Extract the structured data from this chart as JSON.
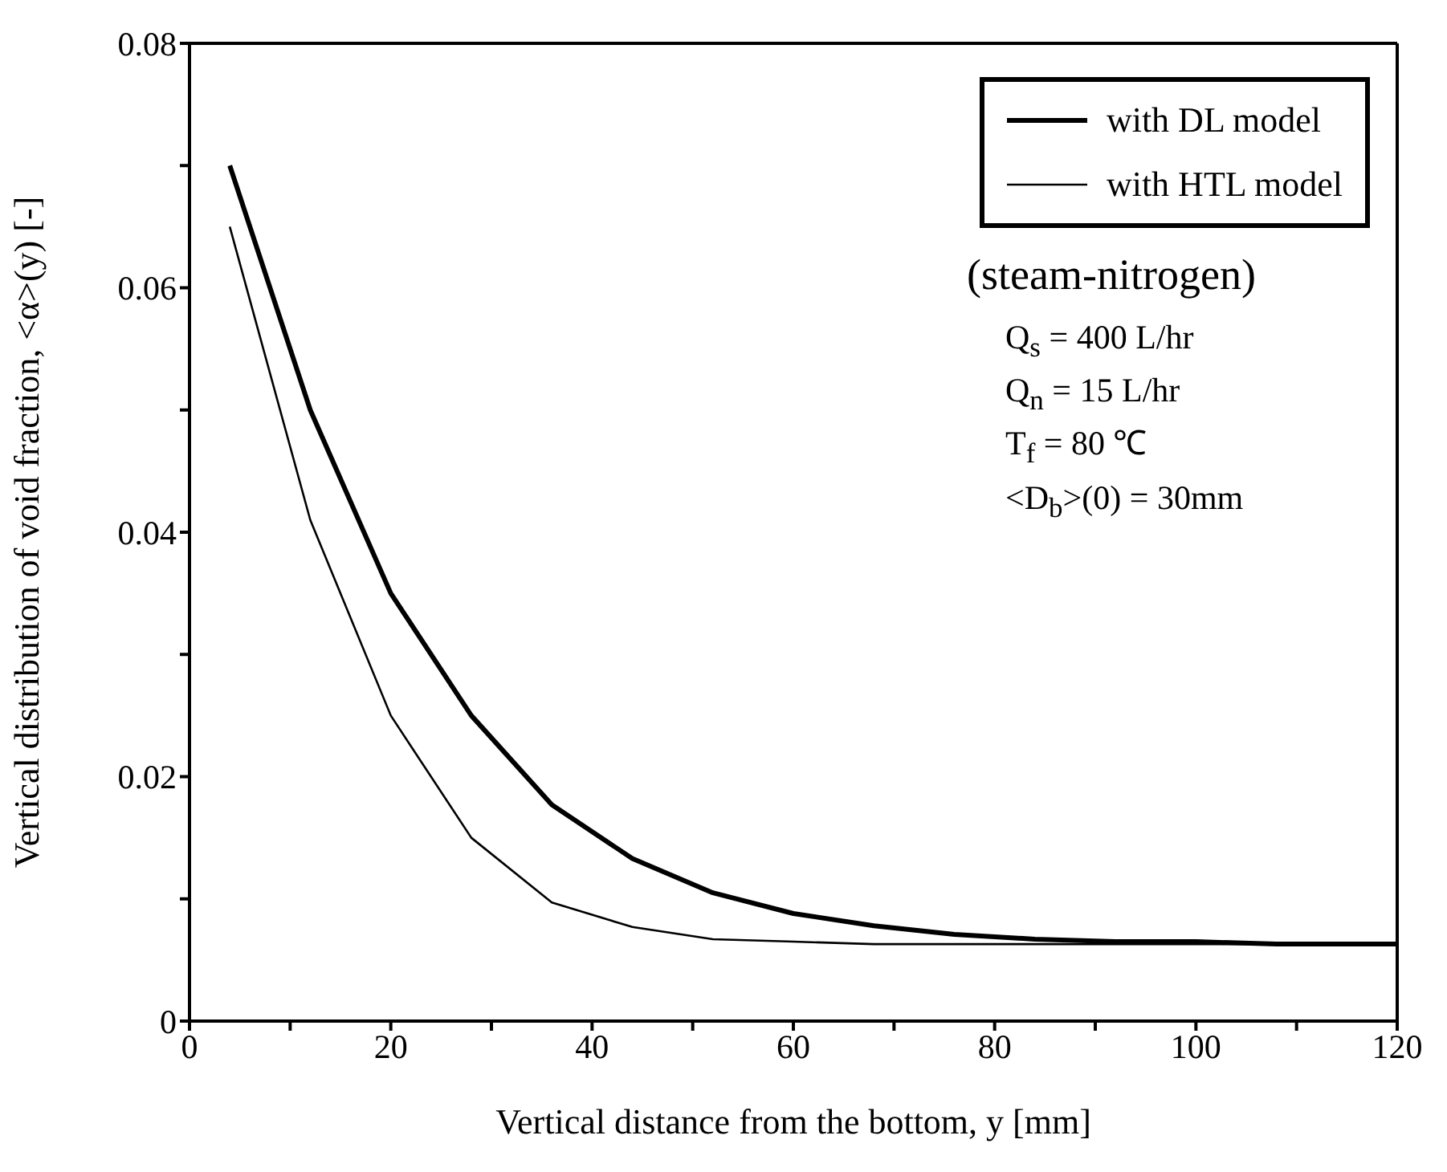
{
  "chart_data": {
    "type": "line",
    "xlabel": "Vertical distance from the bottom, y [mm]",
    "ylabel": "Vertical distribution of void fraction, <α>(y) [-]",
    "x": [
      4,
      12,
      20,
      28,
      36,
      44,
      52,
      60,
      68,
      76,
      84,
      92,
      100,
      108,
      116,
      120
    ],
    "series": [
      {
        "name": "with DL model",
        "color": "#000000",
        "values": [
          0.07,
          0.05,
          0.035,
          0.025,
          0.0177,
          0.0133,
          0.0105,
          0.0088,
          0.0078,
          0.0071,
          0.0067,
          0.0065,
          0.0065,
          0.0063,
          0.0063,
          0.0063
        ]
      },
      {
        "name": "with HTL model",
        "color": "#000000",
        "values": [
          0.065,
          0.041,
          0.025,
          0.015,
          0.0097,
          0.0077,
          0.0067,
          0.0065,
          0.0063,
          0.0063,
          0.0063,
          0.0063,
          0.0063,
          0.0063,
          0.0063,
          0.0063
        ]
      }
    ],
    "xlim": [
      0,
      120
    ],
    "xticks": [
      0,
      {
        "value": 10,
        "label": null
      },
      20,
      {
        "value": 30,
        "label": null
      },
      40,
      {
        "value": 50,
        "label": null
      },
      60,
      {
        "value": 70,
        "label": null
      },
      80,
      {
        "value": 90,
        "label": null
      },
      100,
      {
        "value": 110,
        "label": null
      },
      120
    ],
    "ylim": [
      0,
      0.08
    ],
    "yticks": [
      0,
      {
        "value": 0.01,
        "label": null
      },
      0.02,
      {
        "value": 0.03,
        "label": null
      },
      0.04,
      {
        "value": 0.05,
        "label": null
      },
      0.06,
      {
        "value": 0.07,
        "label": null
      },
      0.08
    ],
    "annotations": [
      "(steam-nitrogen)",
      "Q$_{s}$ = 400 L/hr",
      "Q$_{n}$ = 15 L/hr",
      "T$_{f}$ = 80 ℃",
      "<D$_{b}$>(0) = 30mm"
    ],
    "legend": "top right",
    "grid": false,
    "marker": "none",
    "line_style": "solid"
  }
}
